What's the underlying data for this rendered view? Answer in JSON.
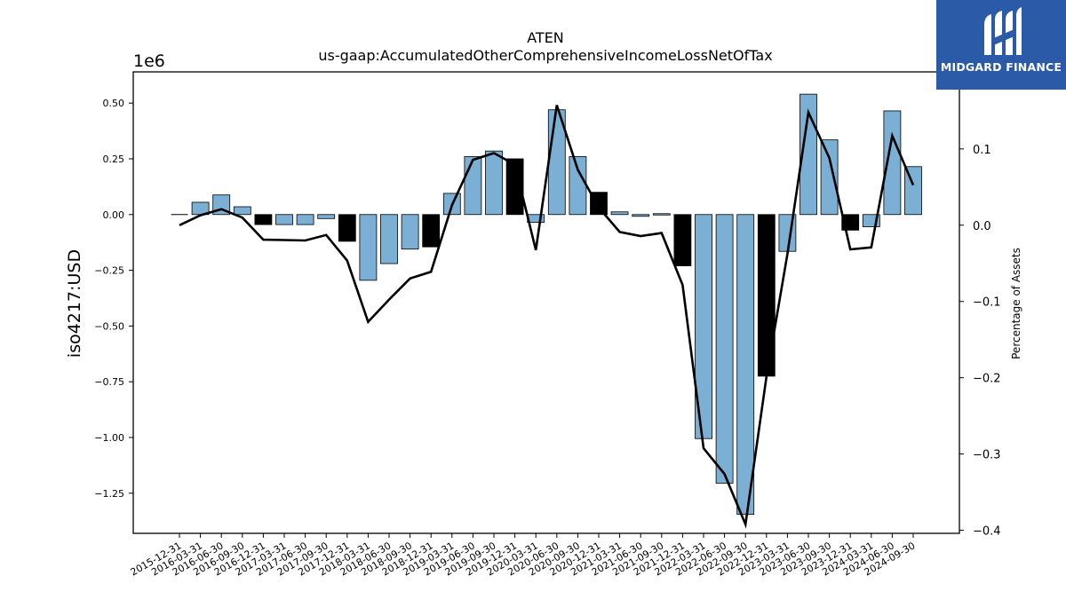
{
  "brand": {
    "name": "MIDGARD FINANCE",
    "bg_color": "#2b5aa8"
  },
  "chart_data": {
    "type": "bar",
    "title": "ATEN",
    "subtitle": "us-gaap:AccumulatedOtherComprehensiveIncomeLossNetOfTax",
    "ylabel": "iso4217:USD",
    "y_offset_label": "1e6",
    "y2label": "Percentage of Assets",
    "ylim": [
      -1.43,
      0.64
    ],
    "y2lim": [
      -0.404,
      0.201
    ],
    "yticks": [
      0.5,
      0.25,
      0.0,
      -0.25,
      -0.5,
      -0.75,
      -1.0,
      -1.25
    ],
    "yticklabels": [
      "0.50",
      "0.25",
      "0.00",
      "−0.25",
      "−0.50",
      "−0.75",
      "−1.00",
      "−1.25"
    ],
    "y2ticks": [
      0.1,
      0.0,
      -0.1,
      -0.2,
      -0.3,
      -0.4
    ],
    "y2ticklabels": [
      "0.1",
      "0.0",
      "−0.1",
      "−0.2",
      "−0.3",
      "−0.4"
    ],
    "bar_color": "#7bafd4",
    "q4_bar_color": "#000000",
    "line_color": "#000000",
    "grid": false,
    "categories": [
      "2015-12-31",
      "2016-03-31",
      "2016-06-30",
      "2016-09-30",
      "2016-12-31",
      "2017-03-31",
      "2017-06-30",
      "2017-09-30",
      "2017-12-31",
      "2018-03-31",
      "2018-06-30",
      "2018-09-30",
      "2018-12-31",
      "2019-03-31",
      "2019-06-30",
      "2019-09-30",
      "2019-12-31",
      "2020-03-31",
      "2020-06-30",
      "2020-09-30",
      "2020-12-31",
      "2021-03-31",
      "2021-06-30",
      "2021-09-30",
      "2021-12-31",
      "2022-03-31",
      "2022-06-30",
      "2022-09-30",
      "2022-12-31",
      "2023-03-31",
      "2023-06-30",
      "2023-09-30",
      "2023-12-31",
      "2024-03-31",
      "2024-06-30",
      "2024-09-30"
    ],
    "series": [
      {
        "name": "",
        "kind": "bar",
        "axis": "left",
        "values": [
          0.0,
          0.055,
          0.088,
          0.035,
          -0.045,
          -0.045,
          -0.045,
          -0.018,
          -0.12,
          -0.295,
          -0.22,
          -0.155,
          -0.145,
          0.095,
          0.26,
          0.285,
          0.25,
          -0.035,
          0.47,
          0.26,
          0.1,
          0.012,
          -0.008,
          0.004,
          -0.23,
          -1.005,
          -1.205,
          -1.345,
          -0.725,
          -0.165,
          0.54,
          0.335,
          -0.07,
          -0.055,
          0.465,
          0.215
        ]
      },
      {
        "name": "",
        "kind": "line",
        "axis": "right",
        "values": [
          0.0,
          0.013,
          0.021,
          0.01,
          -0.019,
          -0.0195,
          -0.02,
          -0.0128,
          -0.0465,
          -0.1268,
          -0.0975,
          -0.0698,
          -0.0611,
          0.0262,
          0.0857,
          0.0946,
          0.0794,
          -0.0326,
          0.1574,
          0.0728,
          0.0231,
          -0.0089,
          -0.0142,
          -0.0103,
          -0.0784,
          -0.2924,
          -0.3263,
          -0.3922,
          -0.1988,
          -0.0379,
          0.1479,
          0.0882,
          -0.0317,
          -0.0291,
          0.1172,
          0.0526
        ]
      }
    ]
  }
}
